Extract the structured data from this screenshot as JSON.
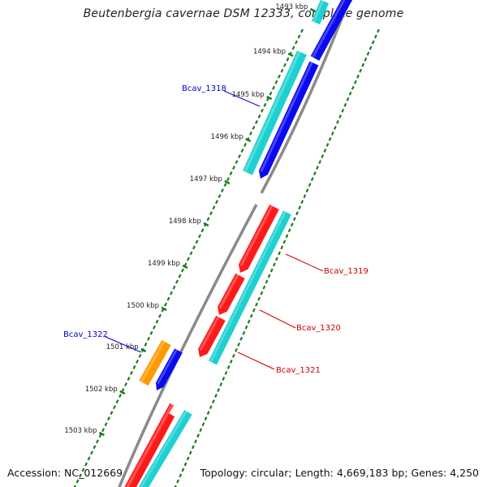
{
  "title": "Beutenbergia cavernae DSM 12333, complete genome",
  "footer": {
    "accession": "Accession: NC_012669",
    "summary": "Topology: circular; Length: 4,669,183 bp; Genes: 4,250"
  },
  "colors": {
    "backbone": "#8a8a8a",
    "tick": "#1a7a1a",
    "cds": "#ff1a1a",
    "gene_forward": "#1fd0d0",
    "gene_reverse": "#0a0af0",
    "other": "#ff9900",
    "label_forward": "#0000cc",
    "label_reverse": "#cc0000"
  },
  "ticks": [
    {
      "label": "1493 kbp",
      "faded": true
    },
    {
      "label": "1494 kbp"
    },
    {
      "label": "1495 kbp"
    },
    {
      "label": "1496 kbp"
    },
    {
      "label": "1497 kbp"
    },
    {
      "label": "1498 kbp"
    },
    {
      "label": "1499 kbp"
    },
    {
      "label": "1500 kbp"
    },
    {
      "label": "1501 kbp"
    },
    {
      "label": "1502 kbp"
    },
    {
      "label": "1503 kbp"
    }
  ],
  "gene_labels": [
    {
      "name": "Bcav_1318",
      "strand": "left"
    },
    {
      "name": "Bcav_1319",
      "strand": "right"
    },
    {
      "name": "Bcav_1320",
      "strand": "right"
    },
    {
      "name": "Bcav_1321",
      "strand": "right"
    },
    {
      "name": "Bcav_1322",
      "strand": "left"
    }
  ]
}
